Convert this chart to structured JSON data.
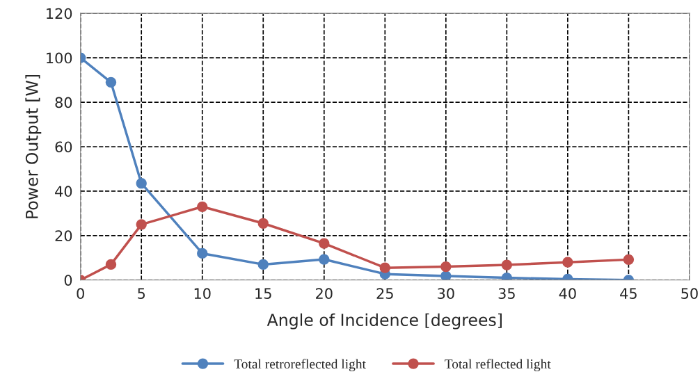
{
  "chart_data": {
    "type": "line",
    "xlabel": "Angle of Incidence [degrees]",
    "ylabel": "Power Output [W]",
    "x": [
      0,
      2.5,
      5,
      10,
      15,
      20,
      25,
      30,
      35,
      40,
      45
    ],
    "series": [
      {
        "name": "Total retroreflected light",
        "color": "#4f81bd",
        "values": [
          100,
          89,
          43.5,
          12,
          7,
          9.3,
          2.7,
          1.8,
          1,
          0.4,
          0
        ]
      },
      {
        "name": "Total reflected light",
        "color": "#c0504d",
        "values": [
          0,
          7,
          25,
          33,
          25.5,
          16.5,
          5.5,
          6,
          6.8,
          8,
          9.2
        ]
      }
    ],
    "xlim": [
      0,
      50
    ],
    "xticks": [
      0,
      5,
      10,
      15,
      20,
      25,
      30,
      35,
      40,
      45,
      50
    ],
    "ylim": [
      0,
      120
    ],
    "yticks": [
      0,
      20,
      40,
      60,
      80,
      100,
      120
    ],
    "grid": true,
    "legend": "bottom",
    "marker": "circle",
    "line_style": "solid"
  }
}
